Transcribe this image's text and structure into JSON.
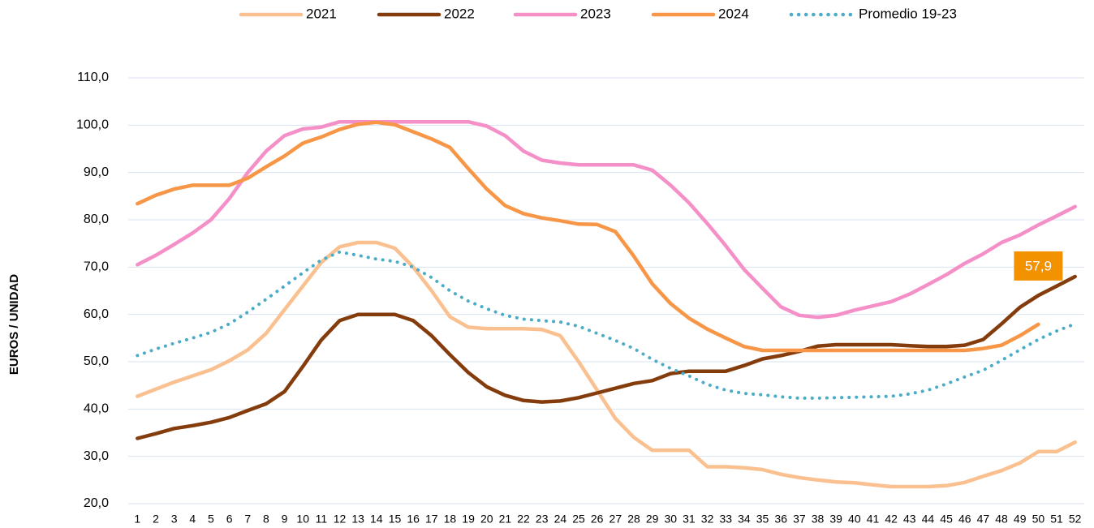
{
  "chart_data": {
    "type": "line",
    "y_label": "EUROS / UNIDAD",
    "categories": [
      "1",
      "2",
      "3",
      "4",
      "5",
      "6",
      "7",
      "8",
      "9",
      "10",
      "11",
      "12",
      "13",
      "14",
      "15",
      "16",
      "17",
      "18",
      "19",
      "20",
      "21",
      "22",
      "23",
      "24",
      "25",
      "26",
      "27",
      "28",
      "29",
      "30",
      "31",
      "32",
      "33",
      "34",
      "35",
      "36",
      "37",
      "38",
      "39",
      "40",
      "41",
      "42",
      "43",
      "44",
      "45",
      "46",
      "47",
      "48",
      "49",
      "50",
      "51",
      "52"
    ],
    "ylim": [
      20,
      110
    ],
    "yticks": [
      {
        "value": 20,
        "label": "20,0"
      },
      {
        "value": 30,
        "label": "30,0"
      },
      {
        "value": 40,
        "label": "40,0"
      },
      {
        "value": 50,
        "label": "50,0"
      },
      {
        "value": 60,
        "label": "60,0"
      },
      {
        "value": 70,
        "label": "70,0"
      },
      {
        "value": 80,
        "label": "80,0"
      },
      {
        "value": 90,
        "label": "90,0"
      },
      {
        "value": 100,
        "label": "100,0"
      },
      {
        "value": 110,
        "label": "110,0"
      }
    ],
    "grid": true,
    "legend": "top",
    "series": [
      {
        "name": "2021",
        "color": "#fac090",
        "style": "solid",
        "values": [
          42.7,
          44.2,
          45.7,
          47,
          48.3,
          50.2,
          52.5,
          56,
          61,
          66,
          71,
          74.3,
          75.2,
          75.2,
          74,
          70,
          65,
          59.5,
          57.3,
          57,
          57,
          57,
          56.8,
          55.5,
          50,
          44,
          38,
          34,
          31.3,
          31.3,
          31.3,
          27.8,
          27.8,
          27.6,
          27.2,
          26.2,
          25.5,
          25,
          24.6,
          24.4,
          24,
          23.6,
          23.6,
          23.6,
          23.8,
          24.5,
          25.8,
          27,
          28.6,
          31,
          31,
          33
        ]
      },
      {
        "name": "2022",
        "color": "#843c0c",
        "style": "solid",
        "values": [
          33.8,
          34.8,
          35.9,
          36.5,
          37.2,
          38.2,
          39.7,
          41.1,
          43.7,
          49,
          54.6,
          58.7,
          60,
          60,
          60,
          58.7,
          55.5,
          51.5,
          47.7,
          44.7,
          42.9,
          41.8,
          41.5,
          41.7,
          42.4,
          43.4,
          44.4,
          45.4,
          46,
          47.5,
          48,
          48,
          48,
          49.2,
          50.6,
          51.3,
          52.2,
          53.3,
          53.6,
          53.6,
          53.6,
          53.6,
          53.4,
          53.2,
          53.2,
          53.5,
          54.7,
          58,
          61.5,
          64,
          66,
          68
        ]
      },
      {
        "name": "2023",
        "color": "#f58fc8",
        "style": "solid",
        "values": [
          70.5,
          72.5,
          74.8,
          77.2,
          80,
          84.5,
          90,
          94.5,
          97.8,
          99.2,
          99.6,
          100.7,
          100.7,
          100.7,
          100.7,
          100.7,
          100.7,
          100.7,
          100.7,
          99.8,
          97.8,
          94.5,
          92.6,
          92,
          91.6,
          91.6,
          91.6,
          91.6,
          90.5,
          87.3,
          83.6,
          79.2,
          74.5,
          69.5,
          65.5,
          61.6,
          59.8,
          59.4,
          59.8,
          60.9,
          61.8,
          62.7,
          64.3,
          66.3,
          68.4,
          70.8,
          72.8,
          75.2,
          76.8,
          78.9,
          80.8,
          82.8
        ]
      },
      {
        "name": "2024",
        "color": "#f79646",
        "style": "solid",
        "values": [
          83.4,
          85.2,
          86.5,
          87.3,
          87.3,
          87.3,
          88.8,
          91.2,
          93.5,
          96.2,
          97.5,
          99.1,
          100.2,
          100.6,
          100.1,
          98.6,
          97.1,
          95.3,
          90.8,
          86.5,
          83,
          81.3,
          80.4,
          79.8,
          79.1,
          79,
          77.5,
          72.3,
          66.5,
          62.3,
          59.2,
          56.9,
          55,
          53.2,
          52.4,
          52.4,
          52.4,
          52.4,
          52.4,
          52.4,
          52.4,
          52.4,
          52.4,
          52.4,
          52.4,
          52.4,
          52.8,
          53.5,
          55.5,
          57.9,
          null,
          null
        ],
        "value_labels": [
          null,
          null,
          null,
          null,
          null,
          null,
          null,
          null,
          null,
          null,
          null,
          null,
          null,
          null,
          null,
          null,
          null,
          null,
          null,
          null,
          null,
          null,
          null,
          null,
          null,
          null,
          null,
          null,
          null,
          null,
          null,
          null,
          null,
          null,
          null,
          null,
          null,
          null,
          null,
          null,
          null,
          null,
          null,
          null,
          null,
          null,
          null,
          null,
          null,
          "57,9",
          null,
          null
        ],
        "label_color": "#f39200"
      },
      {
        "name": "Promedio 19-23",
        "color": "#4bacc6",
        "style": "dotted",
        "values": [
          51.3,
          52.7,
          53.9,
          55,
          56.2,
          58,
          60.5,
          63.2,
          66,
          68.8,
          71.5,
          73.2,
          72.5,
          71.7,
          71.2,
          70,
          67.8,
          65,
          62.8,
          61.2,
          59.8,
          59,
          58.7,
          58.4,
          57.5,
          56,
          54.5,
          52.8,
          50.5,
          48.6,
          47,
          45.2,
          44,
          43.3,
          43,
          42.6,
          42.3,
          42.3,
          42.4,
          42.5,
          42.6,
          42.7,
          43.2,
          44,
          45.3,
          46.8,
          48.2,
          50.3,
          52.5,
          54.7,
          56.5,
          58
        ]
      }
    ]
  }
}
